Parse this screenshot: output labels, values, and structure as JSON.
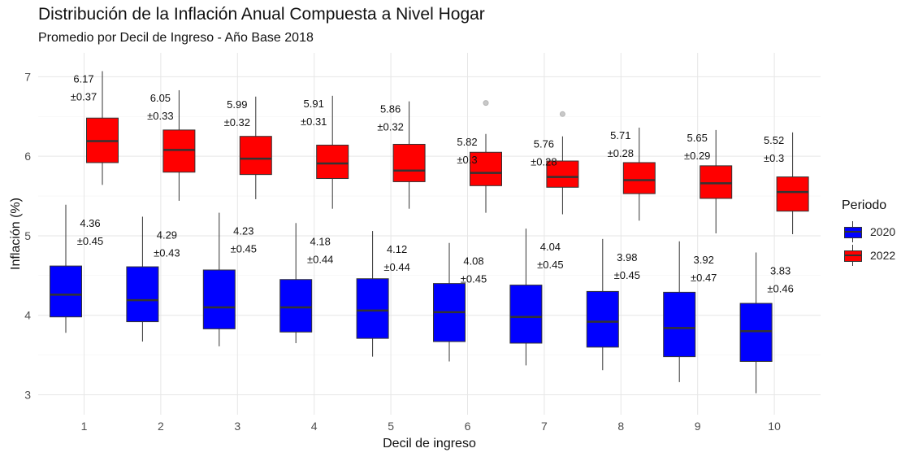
{
  "chart_data": {
    "type": "boxplot",
    "title": "Distribución de la Inflación Anual Compuesta a Nivel Hogar",
    "subtitle": "Promedio por Decil de Ingreso - Año Base 2018",
    "xlabel": "Decil de ingreso",
    "ylabel": "Inflación (%)",
    "categories": [
      "1",
      "2",
      "3",
      "4",
      "5",
      "6",
      "7",
      "8",
      "9",
      "10"
    ],
    "ylim": [
      2.75,
      7.3
    ],
    "yticks": [
      "3",
      "4",
      "5",
      "6",
      "7"
    ],
    "legend": {
      "title": "Periodo",
      "position": "right"
    },
    "series": [
      {
        "name": "2020",
        "color": "#0000ff",
        "boxes": [
          {
            "min": 3.78,
            "q1": 3.98,
            "median": 4.26,
            "q3": 4.62,
            "max": 5.39
          },
          {
            "min": 3.67,
            "q1": 3.92,
            "median": 4.19,
            "q3": 4.61,
            "max": 5.24
          },
          {
            "min": 3.61,
            "q1": 3.83,
            "median": 4.1,
            "q3": 4.57,
            "max": 5.29
          },
          {
            "min": 3.65,
            "q1": 3.79,
            "median": 4.1,
            "q3": 4.45,
            "max": 5.16
          },
          {
            "min": 3.48,
            "q1": 3.71,
            "median": 4.06,
            "q3": 4.46,
            "max": 5.06
          },
          {
            "min": 3.42,
            "q1": 3.67,
            "median": 4.04,
            "q3": 4.4,
            "max": 4.91
          },
          {
            "min": 3.37,
            "q1": 3.65,
            "median": 3.98,
            "q3": 4.38,
            "max": 5.09
          },
          {
            "min": 3.31,
            "q1": 3.6,
            "median": 3.92,
            "q3": 4.3,
            "max": 4.96
          },
          {
            "min": 3.16,
            "q1": 3.48,
            "median": 3.84,
            "q3": 4.29,
            "max": 4.93
          },
          {
            "min": 3.02,
            "q1": 3.42,
            "median": 3.8,
            "q3": 4.15,
            "max": 4.79
          }
        ],
        "outliers": [
          [],
          [],
          [],
          [],
          [],
          [],
          [],
          [],
          [],
          []
        ],
        "mean_labels": [
          "4.36",
          "4.29",
          "4.23",
          "4.18",
          "4.12",
          "4.08",
          "4.04",
          "3.98",
          "3.92",
          "3.83"
        ],
        "sd_labels": [
          "±0.45",
          "±0.43",
          "±0.45",
          "±0.44",
          "±0.44",
          "±0.45",
          "±0.45",
          "±0.45",
          "±0.47",
          "±0.46"
        ]
      },
      {
        "name": "2022",
        "color": "#ff0000",
        "boxes": [
          {
            "min": 5.64,
            "q1": 5.92,
            "median": 6.19,
            "q3": 6.48,
            "max": 7.07
          },
          {
            "min": 5.44,
            "q1": 5.8,
            "median": 6.08,
            "q3": 6.33,
            "max": 6.83
          },
          {
            "min": 5.46,
            "q1": 5.77,
            "median": 5.97,
            "q3": 6.25,
            "max": 6.75
          },
          {
            "min": 5.34,
            "q1": 5.72,
            "median": 5.91,
            "q3": 6.14,
            "max": 6.76
          },
          {
            "min": 5.34,
            "q1": 5.68,
            "median": 5.82,
            "q3": 6.15,
            "max": 6.69
          },
          {
            "min": 5.29,
            "q1": 5.63,
            "median": 5.79,
            "q3": 6.05,
            "max": 6.28
          },
          {
            "min": 5.27,
            "q1": 5.61,
            "median": 5.74,
            "q3": 5.94,
            "max": 6.25
          },
          {
            "min": 5.19,
            "q1": 5.53,
            "median": 5.7,
            "q3": 5.92,
            "max": 6.36
          },
          {
            "min": 5.03,
            "q1": 5.47,
            "median": 5.66,
            "q3": 5.88,
            "max": 6.33
          },
          {
            "min": 5.02,
            "q1": 5.31,
            "median": 5.55,
            "q3": 5.74,
            "max": 6.3
          }
        ],
        "outliers": [
          [],
          [],
          [],
          [],
          [],
          [
            6.67
          ],
          [
            6.53
          ],
          [],
          [],
          []
        ],
        "mean_labels": [
          "6.17",
          "6.05",
          "5.99",
          "5.91",
          "5.86",
          "5.82",
          "5.76",
          "5.71",
          "5.65",
          "5.52"
        ],
        "sd_labels": [
          "±0.37",
          "±0.33",
          "±0.32",
          "±0.31",
          "±0.32",
          "±0.3",
          "±0.28",
          "±0.28",
          "±0.29",
          "±0.3"
        ]
      }
    ]
  }
}
